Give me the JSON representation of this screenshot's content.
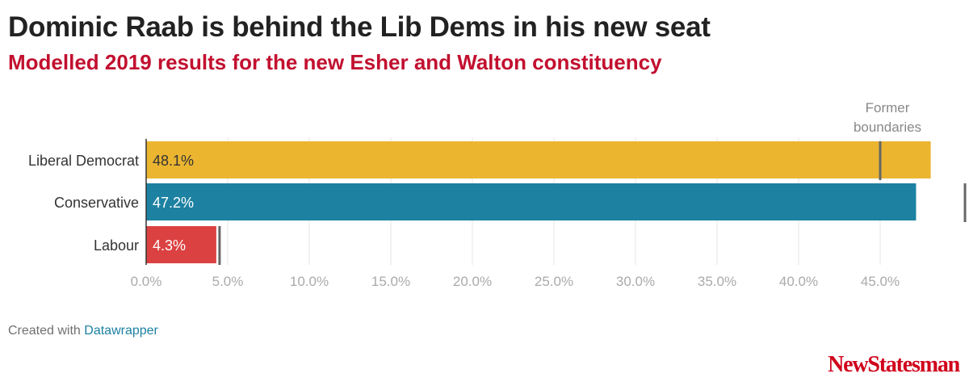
{
  "chart_data": {
    "type": "bar",
    "orientation": "horizontal",
    "title": "Dominic Raab is behind the Lib Dems in his new seat",
    "subtitle": "Modelled 2019 results for the new Esher and Walton constituency",
    "categories": [
      "Liberal Democrat",
      "Conservative",
      "Labour"
    ],
    "values": [
      48.1,
      47.2,
      4.3
    ],
    "value_labels": [
      "48.1%",
      "47.2%",
      "4.3%"
    ],
    "bar_colors": [
      "#ebb530",
      "#1d81a2",
      "#dc4141"
    ],
    "value_label_colors": [
      "#333333",
      "#ffffff",
      "#ffffff"
    ],
    "former_boundaries": [
      45.0,
      50.2,
      4.5
    ],
    "annotation": {
      "text_line1": "Former",
      "text_line2": "boundaries"
    },
    "xlim": [
      0,
      50
    ],
    "xticks": [
      0,
      5,
      10,
      15,
      20,
      25,
      30,
      35,
      40,
      45
    ],
    "xtick_labels": [
      "0.0%",
      "5.0%",
      "10.0%",
      "15.0%",
      "20.0%",
      "25.0%",
      "30.0%",
      "35.0%",
      "40.0%",
      "45.0%"
    ],
    "grid": true
  },
  "footer": {
    "prefix": "Created with",
    "link": "Datawrapper"
  },
  "logo": {
    "text": "NewStatesman"
  }
}
